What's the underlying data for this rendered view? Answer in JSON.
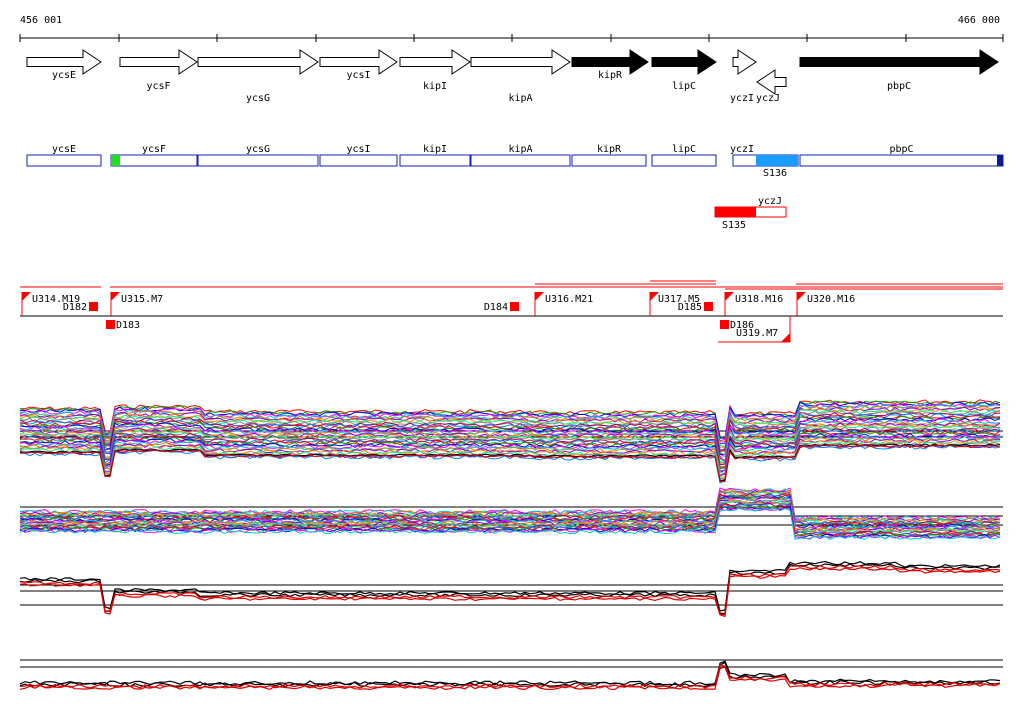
{
  "coords": {
    "start": "456 001",
    "end": "466 000"
  },
  "genes": [
    {
      "name": "ycsE",
      "strand": "+",
      "fill": "#ffffff"
    },
    {
      "name": "ycsF",
      "strand": "+",
      "fill": "#ffffff"
    },
    {
      "name": "ycsG",
      "strand": "+",
      "fill": "#ffffff"
    },
    {
      "name": "ycsI",
      "strand": "+",
      "fill": "#ffffff"
    },
    {
      "name": "kipI",
      "strand": "+",
      "fill": "#ffffff"
    },
    {
      "name": "kipA",
      "strand": "+",
      "fill": "#ffffff"
    },
    {
      "name": "kipR",
      "strand": "+",
      "fill": "#000000"
    },
    {
      "name": "lipC",
      "strand": "+",
      "fill": "#000000"
    },
    {
      "name": "yczI",
      "strand": "+",
      "fill": "#ffffff"
    },
    {
      "name": "yczJ",
      "strand": "-",
      "fill": "#ffffff"
    },
    {
      "name": "pbpC",
      "strand": "+",
      "fill": "#000000"
    }
  ],
  "gene_boxes": [
    "ycsE",
    "ycsF",
    "ycsG",
    "ycsI",
    "kipI",
    "kipA",
    "kipR",
    "lipC",
    "yczI",
    "pbpC"
  ],
  "segments": [
    {
      "label": "S136",
      "color": "#1a9bff"
    },
    {
      "label": "yczJ",
      "color": "#ffffff"
    },
    {
      "label": "S135",
      "color": "#ff0000"
    }
  ],
  "upstream_features": [
    "U314.M19",
    "U315.M7",
    "U316.M21",
    "U317.M5",
    "U318.M16",
    "U319.M7",
    "U320.M16"
  ],
  "downstream_features": [
    "D182",
    "D183",
    "D184",
    "D185",
    "D186"
  ],
  "colors": {
    "gene_box": "#1020b0",
    "feature": "#ff0000",
    "start_marker": "#22dd22",
    "end_marker": "#0a1a90"
  }
}
